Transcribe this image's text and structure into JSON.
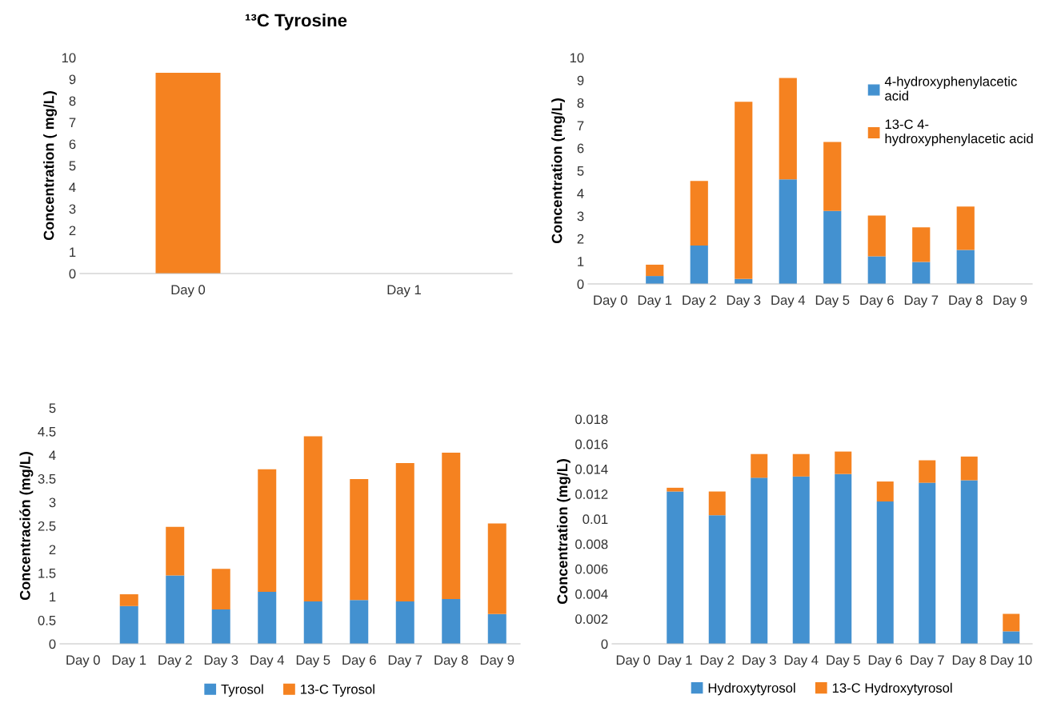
{
  "chart_data": [
    {
      "type": "bar",
      "title": "¹³C Tyrosine",
      "ylabel": "Concentration ( mg/L)",
      "categories": [
        "Day 0",
        "Day 1"
      ],
      "series": [
        {
          "color": "#f58220",
          "values": [
            9.3,
            0
          ]
        }
      ],
      "ylim": [
        0,
        10
      ],
      "yticks": [
        0,
        1,
        2,
        3,
        4,
        5,
        6,
        7,
        8,
        9,
        10
      ],
      "grid": false,
      "legend": false
    },
    {
      "type": "bar",
      "stacked": true,
      "ylabel": "Concentration (mg/L)",
      "categories": [
        "Day 0",
        "Day 1",
        "Day 2",
        "Day 3",
        "Day 4",
        "Day 5",
        "Day 6",
        "Day 7",
        "Day 8",
        "Day 9"
      ],
      "series": [
        {
          "name": "4-hydroxyphenylacetic\nacid",
          "color": "#4391d0",
          "values": [
            0,
            0.35,
            1.7,
            0.22,
            4.62,
            3.22,
            1.22,
            0.97,
            1.5,
            0
          ]
        },
        {
          "name": "13-C 4-\nhydroxyphenylacetic acid",
          "color": "#f58220",
          "values": [
            0,
            0.5,
            2.85,
            7.83,
            4.48,
            3.05,
            1.8,
            1.53,
            1.92,
            0
          ]
        }
      ],
      "ylim": [
        0,
        10
      ],
      "yticks": [
        0,
        1,
        2,
        3,
        4,
        5,
        6,
        7,
        8,
        9,
        10
      ],
      "grid": false,
      "legend": "top right"
    },
    {
      "type": "bar",
      "stacked": true,
      "ylabel": "Concentración (mg/L)",
      "categories": [
        "Day 0",
        "Day 1",
        "Day 2",
        "Day 3",
        "Day 4",
        "Day 5",
        "Day 6",
        "Day 7",
        "Day 8",
        "Day 9"
      ],
      "series": [
        {
          "name": "Tyrosol",
          "color": "#4391d0",
          "values": [
            0,
            0.8,
            1.45,
            0.73,
            1.1,
            0.9,
            0.93,
            0.9,
            0.95,
            0.63
          ]
        },
        {
          "name": "13-C Tyrosol",
          "color": "#f58220",
          "values": [
            0,
            0.25,
            1.03,
            0.86,
            2.6,
            3.5,
            2.56,
            2.93,
            3.1,
            1.92
          ]
        }
      ],
      "ylim": [
        0,
        5
      ],
      "yticks": [
        0,
        0.5,
        1,
        1.5,
        2,
        2.5,
        3,
        3.5,
        4,
        4.5,
        5
      ],
      "grid": false,
      "legend": "bottom"
    },
    {
      "type": "bar",
      "stacked": true,
      "ylabel": "Concentration (mg/L)",
      "categories": [
        "Day 0",
        "Day 1",
        "Day 2",
        "Day 3",
        "Day 4",
        "Day 5",
        "Day 6",
        "Day 7",
        "Day 8",
        "Day 10"
      ],
      "series": [
        {
          "name": "Hydroxytyrosol",
          "color": "#4391d0",
          "values": [
            0,
            0.0122,
            0.0103,
            0.0133,
            0.0134,
            0.0136,
            0.0114,
            0.0129,
            0.0131,
            0.001
          ]
        },
        {
          "name": "13-C Hydroxytyrosol",
          "color": "#f58220",
          "values": [
            0,
            0.0003,
            0.0019,
            0.0019,
            0.0018,
            0.0018,
            0.0016,
            0.0018,
            0.0019,
            0.0014
          ]
        }
      ],
      "ylim": [
        0,
        0.018
      ],
      "yticks": [
        0,
        0.002,
        0.004,
        0.006,
        0.008,
        0.01,
        0.012,
        0.014,
        0.016,
        0.018
      ],
      "grid": false,
      "legend": "bottom"
    }
  ]
}
